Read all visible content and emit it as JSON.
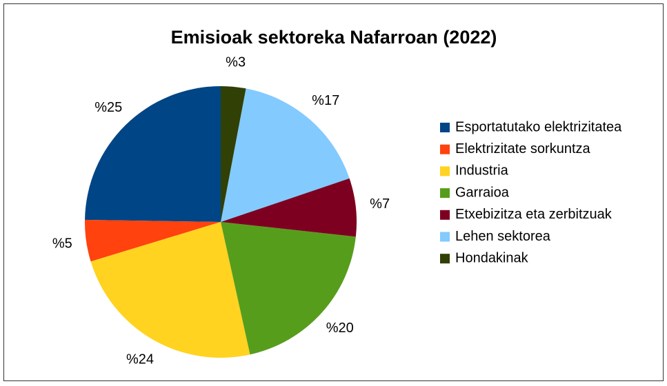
{
  "chart_data": {
    "type": "pie",
    "title": "Emisioak sektoreka Nafarroan (2022)",
    "categories": [
      "Esportatutako elektrizitatea",
      "Elektrizitate sorkuntza",
      "Industria",
      "Garraioa",
      "Etxebizitza eta zerbitzuak",
      "Lehen sektorea",
      "Hondakinak"
    ],
    "values": [
      25,
      5,
      24,
      20,
      7,
      17,
      3
    ],
    "value_labels": [
      "%25",
      "%5",
      "%24",
      "%20",
      "%7",
      "%17",
      "%3"
    ],
    "colors": [
      "#004586",
      "#ff420e",
      "#ffd320",
      "#579d1c",
      "#7e0021",
      "#83caff",
      "#314004"
    ],
    "legend": "right"
  }
}
